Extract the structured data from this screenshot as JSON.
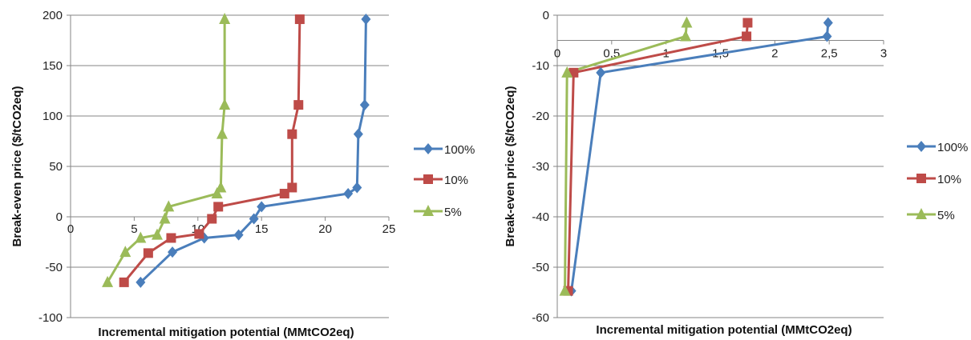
{
  "chart_data": [
    {
      "type": "scatter",
      "xlabel": "Incremental mitigation potential (MMtCO2eq)",
      "ylabel": "Break-even price ($/tCO2eq)",
      "xlim": [
        0,
        25
      ],
      "ylim": [
        -100,
        200
      ],
      "xticks": [
        "0",
        "5",
        "10",
        "15",
        "20",
        "25"
      ],
      "yticks": [
        "-100",
        "-50",
        "0",
        "50",
        "100",
        "150",
        "200"
      ],
      "x_axis_crosses_y_at": 0,
      "grid": "horizontal",
      "legend_position": "right",
      "series": [
        {
          "name": "100%",
          "color": "#4a7ebb",
          "marker": "diamond",
          "points": [
            [
              5.5,
              -65
            ],
            [
              8.0,
              -35
            ],
            [
              10.5,
              -21
            ],
            [
              13.2,
              -18
            ],
            [
              14.4,
              -2
            ],
            [
              15.0,
              10
            ],
            [
              21.8,
              23
            ],
            [
              22.5,
              29
            ],
            [
              22.6,
              82
            ],
            [
              23.1,
              111
            ],
            [
              23.2,
              196
            ]
          ]
        },
        {
          "name": "10%",
          "color": "#be4b48",
          "marker": "square",
          "points": [
            [
              4.2,
              -65
            ],
            [
              6.1,
              -36
            ],
            [
              7.9,
              -21
            ],
            [
              10.1,
              -17
            ],
            [
              11.1,
              -2
            ],
            [
              11.6,
              10
            ],
            [
              16.8,
              23
            ],
            [
              17.4,
              29
            ],
            [
              17.4,
              82
            ],
            [
              17.9,
              111
            ],
            [
              18.0,
              196
            ]
          ]
        },
        {
          "name": "5%",
          "color": "#9bbb59",
          "marker": "triangle",
          "points": [
            [
              2.9,
              -65
            ],
            [
              4.3,
              -35
            ],
            [
              5.5,
              -21
            ],
            [
              6.8,
              -18
            ],
            [
              7.4,
              -2
            ],
            [
              7.7,
              10
            ],
            [
              11.5,
              23
            ],
            [
              11.8,
              29
            ],
            [
              11.9,
              82
            ],
            [
              12.1,
              111
            ],
            [
              12.1,
              196
            ]
          ]
        }
      ]
    },
    {
      "type": "scatter",
      "xlabel": "Incremental mitigation potential (MMtCO2eq)",
      "ylabel": "Break-even price ($/tCO2eq)",
      "xlim": [
        0,
        3
      ],
      "ylim": [
        -60,
        0
      ],
      "xticks": [
        "0",
        "0,5",
        "1",
        "1,5",
        "2",
        "2,5",
        "3"
      ],
      "yticks": [
        "-60",
        "-50",
        "-40",
        "-30",
        "-20",
        "-10",
        "0"
      ],
      "x_axis_crosses_y_at": -5,
      "grid": "horizontal",
      "legend_position": "right",
      "series": [
        {
          "name": "100%",
          "color": "#4a7ebb",
          "marker": "diamond",
          "points": [
            [
              0.13,
              -54.7
            ],
            [
              0.4,
              -11.4
            ],
            [
              2.48,
              -4.2
            ],
            [
              2.49,
              -1.5
            ]
          ]
        },
        {
          "name": "10%",
          "color": "#be4b48",
          "marker": "square",
          "points": [
            [
              0.1,
              -54.7
            ],
            [
              0.15,
              -11.4
            ],
            [
              1.74,
              -4.2
            ],
            [
              1.75,
              -1.5
            ]
          ]
        },
        {
          "name": "5%",
          "color": "#9bbb59",
          "marker": "triangle",
          "points": [
            [
              0.07,
              -54.7
            ],
            [
              0.09,
              -11.4
            ],
            [
              1.18,
              -4.2
            ],
            [
              1.19,
              -1.5
            ]
          ]
        }
      ]
    }
  ]
}
